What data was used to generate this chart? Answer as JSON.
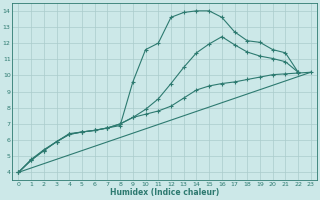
{
  "xlabel": "Humidex (Indice chaleur)",
  "background_color": "#cce8e8",
  "grid_color": "#aacccc",
  "line_color": "#2d7a70",
  "xlim": [
    -0.5,
    23.5
  ],
  "ylim": [
    3.5,
    14.5
  ],
  "xticks": [
    0,
    1,
    2,
    3,
    4,
    5,
    6,
    7,
    8,
    9,
    10,
    11,
    12,
    13,
    14,
    15,
    16,
    17,
    18,
    19,
    20,
    21,
    22,
    23
  ],
  "yticks": [
    4,
    5,
    6,
    7,
    8,
    9,
    10,
    11,
    12,
    13,
    14
  ],
  "curve1_x": [
    0,
    1,
    2,
    3,
    4,
    5,
    6,
    7,
    8,
    9,
    10,
    11,
    12,
    13,
    14,
    15,
    16,
    17,
    18,
    19,
    20,
    21,
    22
  ],
  "curve1_y": [
    4.0,
    4.8,
    5.4,
    5.9,
    6.4,
    6.5,
    6.6,
    6.75,
    6.9,
    9.6,
    11.6,
    12.0,
    13.6,
    13.9,
    14.0,
    14.0,
    13.6,
    12.7,
    12.15,
    12.05,
    11.6,
    11.4,
    10.2
  ],
  "curve2_x": [
    0,
    1,
    2,
    3,
    4,
    5,
    6,
    7,
    8,
    9,
    10,
    11,
    12,
    13,
    14,
    15,
    16,
    17,
    18,
    19,
    20,
    21,
    22,
    23
  ],
  "curve2_y": [
    4.0,
    4.75,
    5.35,
    5.9,
    6.35,
    6.5,
    6.6,
    6.75,
    7.0,
    7.4,
    7.6,
    7.8,
    8.1,
    8.6,
    9.1,
    9.35,
    9.5,
    9.6,
    9.75,
    9.9,
    10.05,
    10.1,
    10.15,
    10.2
  ],
  "curve3_x": [
    0,
    1,
    2,
    3,
    4,
    5,
    6,
    7,
    8,
    9,
    10,
    11,
    12,
    13,
    14,
    15,
    16,
    17,
    18,
    19,
    20,
    21,
    22
  ],
  "curve3_y": [
    4.0,
    4.75,
    5.35,
    5.9,
    6.35,
    6.5,
    6.6,
    6.75,
    7.0,
    7.4,
    7.9,
    8.55,
    9.5,
    10.5,
    11.4,
    11.95,
    12.4,
    11.9,
    11.45,
    11.2,
    11.05,
    10.85,
    10.2
  ],
  "curve4_x": [
    0,
    23
  ],
  "curve4_y": [
    4.0,
    10.2
  ]
}
